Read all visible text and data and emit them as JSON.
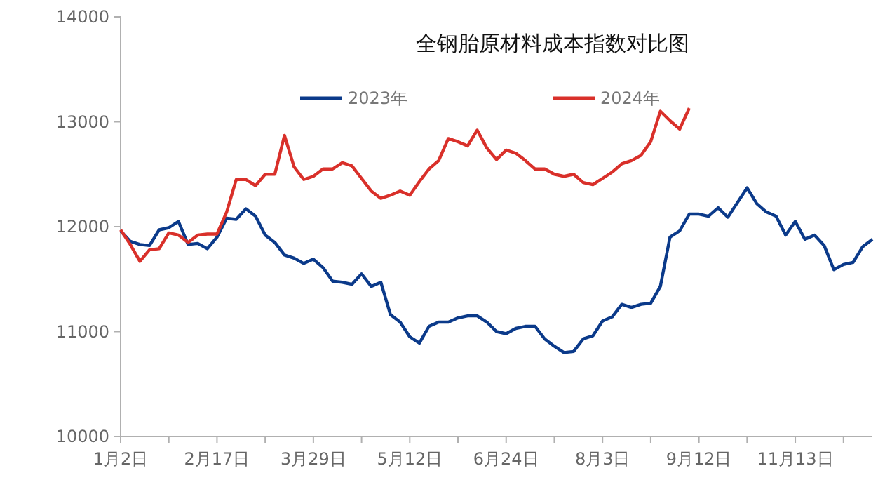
{
  "chart_data": {
    "type": "line",
    "title": "全钢胎原材料成本指数对比图",
    "categories": [
      "1月2日",
      null,
      null,
      null,
      null,
      null,
      null,
      null,
      null,
      null,
      "2月17日",
      null,
      null,
      null,
      null,
      null,
      null,
      null,
      null,
      null,
      "3月29日",
      null,
      null,
      null,
      null,
      null,
      null,
      null,
      null,
      null,
      "5月12日",
      null,
      null,
      null,
      null,
      null,
      null,
      null,
      null,
      null,
      "6月24日",
      null,
      null,
      null,
      null,
      null,
      null,
      null,
      null,
      null,
      "8月3日",
      null,
      null,
      null,
      null,
      null,
      null,
      null,
      null,
      null,
      "9月12日",
      null,
      null,
      null,
      null,
      null,
      null,
      null,
      null,
      null,
      "11月13日",
      null,
      null,
      null,
      null,
      null,
      null,
      null,
      null
    ],
    "series": [
      {
        "name": "2023年",
        "color": "#0b3a8a",
        "values": [
          11960,
          11860,
          11830,
          11820,
          11970,
          11990,
          12050,
          11830,
          11840,
          11790,
          11900,
          12080,
          12070,
          12170,
          12100,
          11920,
          11850,
          11730,
          11700,
          11650,
          11690,
          11610,
          11480,
          11470,
          11450,
          11550,
          11430,
          11470,
          11160,
          11090,
          10950,
          10890,
          11050,
          11090,
          11090,
          11130,
          11150,
          11150,
          11090,
          11000,
          10980,
          11030,
          11050,
          11050,
          10930,
          10860,
          10800,
          10810,
          10930,
          10960,
          11100,
          11140,
          11260,
          11230,
          11260,
          11270,
          11430,
          11900,
          11960,
          12120,
          12120,
          12100,
          12180,
          12090,
          12230,
          12370,
          12220,
          12140,
          12100,
          11920,
          12050,
          11880,
          11920,
          11820,
          11590,
          11640,
          11660,
          11810,
          11880
        ]
      },
      {
        "name": "2024年",
        "color": "#d9302a",
        "values": [
          11970,
          11830,
          11670,
          11780,
          11790,
          11940,
          11920,
          11850,
          11920,
          11930,
          11930,
          12140,
          12450,
          12450,
          12390,
          12500,
          12500,
          12870,
          12570,
          12450,
          12480,
          12550,
          12550,
          12610,
          12580,
          12460,
          12340,
          12270,
          12300,
          12340,
          12300,
          12430,
          12550,
          12630,
          12840,
          12810,
          12770,
          12920,
          12750,
          12640,
          12730,
          12700,
          12630,
          12550,
          12550,
          12500,
          12480,
          12500,
          12420,
          12400,
          12460,
          12520,
          12600,
          12630,
          12680,
          12810,
          13100,
          13010,
          12930,
          13130,
          null,
          null,
          null,
          null,
          null,
          null,
          null,
          null,
          null,
          null,
          null,
          null,
          null,
          null,
          null,
          null,
          null,
          null,
          null
        ]
      }
    ],
    "ylim": [
      10000,
      14000
    ],
    "yticks": [
      10000,
      11000,
      12000,
      13000,
      14000
    ],
    "grid": false,
    "legend": "top",
    "marker": "none",
    "line_style": "solid"
  }
}
